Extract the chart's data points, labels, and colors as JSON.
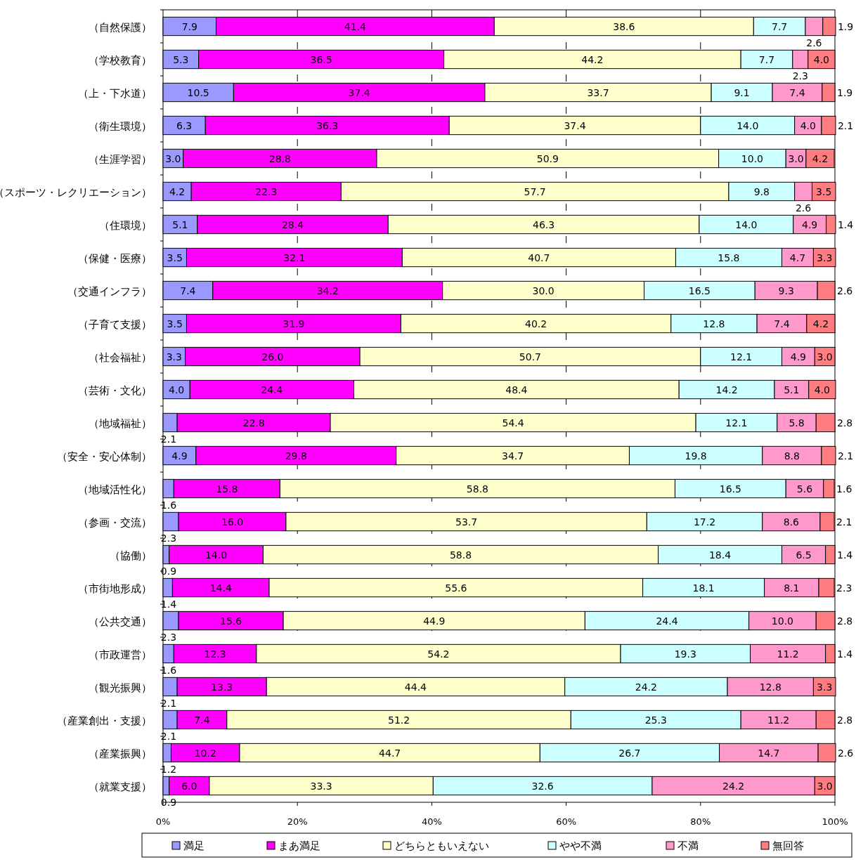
{
  "chart_data": {
    "type": "bar",
    "orientation": "horizontal",
    "stacked": true,
    "grid": "x",
    "legend": "bottom",
    "categories": [
      "（自然保護）",
      "（学校教育）",
      "（上・下水道）",
      "（衛生環境）",
      "（生涯学習）",
      "（スポーツ・レクリエーション）",
      "（住環境）",
      "（保健・医療）",
      "（交通インフラ）",
      "（子育て支援）",
      "（社会福祉）",
      "（芸術・文化）",
      "（地域福祉）",
      "（安全・安心体制）",
      "（地域活性化）",
      "（参画・交流）",
      "（協働）",
      "（市街地形成）",
      "（公共交通）",
      "（市政運営）",
      "（観光振興）",
      "（産業創出・支援）",
      "（産業振興）",
      "（就業支援）"
    ],
    "xlim": [
      0,
      100
    ],
    "xticks": [
      {
        "value": 0,
        "label": "0%"
      },
      {
        "value": 20,
        "label": "20%"
      },
      {
        "value": 40,
        "label": "40%"
      },
      {
        "value": 60,
        "label": "60%"
      },
      {
        "value": 80,
        "label": "80%"
      },
      {
        "value": 100,
        "label": "100%"
      }
    ],
    "series": [
      {
        "name": "満足",
        "color": "#9999ff",
        "values": [
          7.9,
          5.3,
          10.5,
          6.3,
          3.0,
          4.2,
          5.1,
          3.5,
          7.4,
          3.5,
          3.3,
          4.0,
          2.1,
          4.9,
          1.6,
          2.3,
          0.9,
          1.4,
          2.3,
          1.6,
          2.1,
          2.1,
          1.2,
          0.9
        ],
        "value_labels": [
          "7.9",
          "5.3",
          "10.5",
          "6.3",
          "3.0",
          "4.2",
          "5.1",
          "3.5",
          "7.4",
          "3.5",
          "3.3",
          "4.0",
          "2.1",
          "4.9",
          "1.6",
          "2.3",
          "0.9",
          "1.4",
          "2.3",
          "1.6",
          "2.1",
          "2.1",
          "1.2",
          "0.9"
        ]
      },
      {
        "name": "まあ満足",
        "color": "#ff00ff",
        "values": [
          41.4,
          36.5,
          37.4,
          36.3,
          28.8,
          22.3,
          28.4,
          32.1,
          34.2,
          31.9,
          26.0,
          24.4,
          22.8,
          29.8,
          15.8,
          16.0,
          14.0,
          14.4,
          15.6,
          12.3,
          13.3,
          7.4,
          10.2,
          6.0
        ],
        "value_labels": [
          "41.4",
          "36.5",
          "37.4",
          "36.3",
          "28.8",
          "22.3",
          "28.4",
          "32.1",
          "34.2",
          "31.9",
          "26.0",
          "24.4",
          "22.8",
          "29.8",
          "15.8",
          "16.0",
          "14.0",
          "14.4",
          "15.6",
          "12.3",
          "13.3",
          "7.4",
          "10.2",
          "6.0"
        ]
      },
      {
        "name": "どちらともいえない",
        "color": "#ffffcc",
        "values": [
          38.6,
          44.2,
          33.7,
          37.4,
          50.9,
          57.7,
          46.3,
          40.7,
          30.0,
          40.2,
          50.7,
          48.4,
          54.4,
          34.7,
          58.8,
          53.7,
          58.8,
          55.6,
          44.9,
          54.2,
          44.4,
          51.2,
          44.7,
          33.3
        ],
        "value_labels": [
          "38.6",
          "44.2",
          "33.7",
          "37.4",
          "50.9",
          "57.7",
          "46.3",
          "40.7",
          "30.0",
          "40.2",
          "50.7",
          "48.4",
          "54.4",
          "34.7",
          "58.8",
          "53.7",
          "58.8",
          "55.6",
          "44.9",
          "54.2",
          "44.4",
          "51.2",
          "44.7",
          "33.3"
        ]
      },
      {
        "name": "やや不満",
        "color": "#ccffff",
        "values": [
          7.7,
          7.7,
          9.1,
          14.0,
          10.0,
          9.8,
          14.0,
          15.8,
          16.5,
          12.8,
          12.1,
          14.2,
          12.1,
          19.8,
          16.5,
          17.2,
          18.4,
          18.1,
          24.4,
          19.3,
          24.2,
          25.3,
          26.7,
          32.6
        ],
        "value_labels": [
          "7.7",
          "7.7",
          "9.1",
          "14.0",
          "10.0",
          "9.8",
          "14.0",
          "15.8",
          "16.5",
          "12.8",
          "12.1",
          "14.2",
          "12.1",
          "19.8",
          "16.5",
          "17.2",
          "18.4",
          "18.1",
          "24.4",
          "19.3",
          "24.2",
          "25.3",
          "26.7",
          "32.6"
        ]
      },
      {
        "name": "不満",
        "color": "#ff99cc",
        "values": [
          2.6,
          2.3,
          7.4,
          4.0,
          3.0,
          2.6,
          4.9,
          4.7,
          9.3,
          7.4,
          4.9,
          5.1,
          5.8,
          8.8,
          5.6,
          8.6,
          6.5,
          8.1,
          10.0,
          11.2,
          12.8,
          11.2,
          14.7,
          24.2
        ],
        "value_labels": [
          "2.6",
          "2.3",
          "7.4",
          "4.0",
          "3.0",
          "2.6",
          "4.9",
          "4.7",
          "9.3",
          "7.4",
          "4.9",
          "5.1",
          "5.8",
          "8.8",
          "5.6",
          "8.6",
          "6.5",
          "8.1",
          "10.0",
          "11.2",
          "12.8",
          "11.2",
          "14.7",
          "24.2"
        ]
      },
      {
        "name": "無回答",
        "color": "#ff7c80",
        "values": [
          1.9,
          4.0,
          1.9,
          2.1,
          4.2,
          3.5,
          1.4,
          3.3,
          2.6,
          4.2,
          3.0,
          4.0,
          2.8,
          2.1,
          1.6,
          2.1,
          1.4,
          2.3,
          2.8,
          1.4,
          3.3,
          2.8,
          2.6,
          3.0
        ],
        "value_labels": [
          "1.9",
          "4.0",
          "1.9",
          "2.1",
          "4.2",
          "3.5",
          "1.4",
          "3.3",
          "2.6",
          "4.2",
          "3.0",
          "4.0",
          "2.8",
          "2.1",
          "1.6",
          "2.1",
          "1.4",
          "2.3",
          "2.8",
          "1.4",
          "3.3",
          "2.8",
          "2.6",
          "3.0"
        ]
      }
    ]
  }
}
